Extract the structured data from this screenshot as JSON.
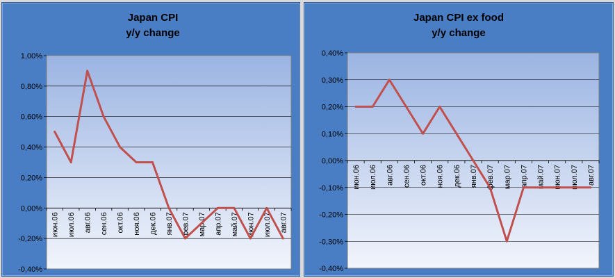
{
  "chart_data": [
    {
      "type": "line",
      "title": "Japan CPI",
      "subtitle": "y/y change",
      "xlabel": "",
      "ylabel": "",
      "ylim": [
        -0.4,
        1.0
      ],
      "yticks": [
        "1,00%",
        "0,80%",
        "0,60%",
        "0,40%",
        "0,20%",
        "0,00%",
        "-0,20%",
        "-0,40%"
      ],
      "categories": [
        "июн.06",
        "июл.06",
        "авг.06",
        "сен.06",
        "окт.06",
        "ноя.06",
        "дек.06",
        "янв.07",
        "фев.07",
        "мар.07",
        "апр.07",
        "май.07",
        "июн.07",
        "июл.07",
        "авг.07"
      ],
      "series": [
        {
          "values": [
            0.5,
            0.3,
            0.9,
            0.6,
            0.4,
            0.3,
            0.3,
            0.0,
            -0.2,
            -0.1,
            0.0,
            0.0,
            -0.2,
            0.0,
            -0.2
          ]
        }
      ],
      "grid": true,
      "line_color": "#c0504d"
    },
    {
      "type": "line",
      "title": "Japan CPI ex food",
      "subtitle": "y/y change",
      "xlabel": "",
      "ylabel": "",
      "ylim": [
        -0.4,
        0.4
      ],
      "yticks": [
        "0,40%",
        "0,30%",
        "0,20%",
        "0,10%",
        "0,00%",
        "-0,10%",
        "-0,20%",
        "-0,30%",
        "-0,40%"
      ],
      "categories": [
        "июн.06",
        "июл.06",
        "авг.06",
        "сен.06",
        "окт.06",
        "ноя.06",
        "дек.06",
        "янв.07",
        "фев.07",
        "мар.07",
        "апр.07",
        "май.07",
        "июн.07",
        "июл.07",
        "авг.07"
      ],
      "series": [
        {
          "values": [
            0.2,
            0.2,
            0.3,
            0.2,
            0.1,
            0.2,
            0.1,
            0.0,
            -0.1,
            -0.3,
            -0.1,
            -0.1,
            -0.1,
            -0.1,
            -0.1
          ]
        }
      ],
      "grid": true,
      "line_color": "#c0504d"
    }
  ]
}
